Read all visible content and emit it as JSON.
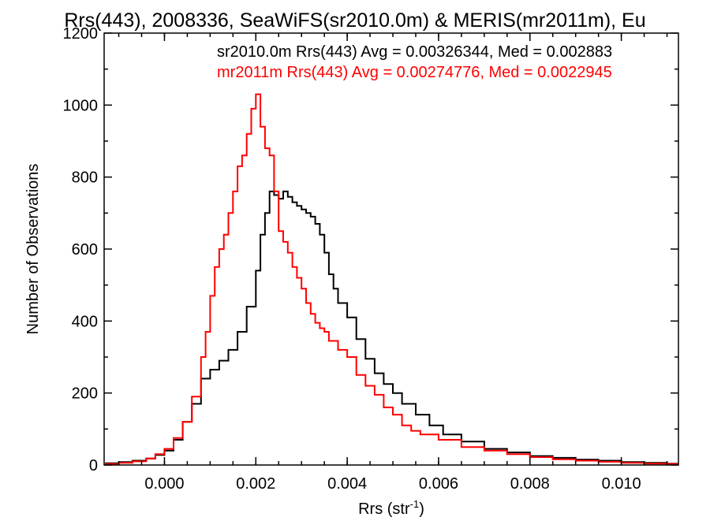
{
  "title": "Rrs(443), 2008336, SeaWiFS(sr2010.0m) & MERIS(mr2011m), Eu",
  "colors": {
    "sr2010": "#000000",
    "mr2011": "#ff0000"
  },
  "chart_data": {
    "type": "line",
    "step": true,
    "xlabel": "Rrs (str",
    "xlabel_sup": "-1",
    "xlabel_close": ")",
    "ylabel": "Number of Observations",
    "xlim": [
      -0.00132,
      0.01125
    ],
    "ylim": [
      0,
      1200
    ],
    "xticks": [
      {
        "value": 0.0,
        "label": "0.000"
      },
      {
        "value": 0.002,
        "label": "0.002"
      },
      {
        "value": 0.004,
        "label": "0.004"
      },
      {
        "value": 0.006,
        "label": "0.006"
      },
      {
        "value": 0.008,
        "label": "0.008"
      },
      {
        "value": 0.01,
        "label": "0.010"
      }
    ],
    "yticks": [
      {
        "value": 0,
        "label": "0"
      },
      {
        "value": 200,
        "label": "200"
      },
      {
        "value": 400,
        "label": "400"
      },
      {
        "value": 600,
        "label": "600"
      },
      {
        "value": 800,
        "label": "800"
      },
      {
        "value": 1000,
        "label": "1000"
      },
      {
        "value": 1200,
        "label": "1200"
      }
    ],
    "legend": [
      {
        "text": "sr2010.0m Rrs(443) Avg = 0.00326344, Med = 0.002883",
        "color": "#000000"
      },
      {
        "text": "mr2011m Rrs(443) Avg = 0.00274776, Med = 0.0022945",
        "color": "#ff0000"
      }
    ],
    "series": [
      {
        "key": "sr2010",
        "color": "#000000",
        "points": [
          [
            -0.0013,
            5
          ],
          [
            -0.001,
            8
          ],
          [
            -0.0007,
            12
          ],
          [
            -0.0004,
            18
          ],
          [
            -0.0002,
            28
          ],
          [
            0.0,
            40
          ],
          [
            0.0002,
            70
          ],
          [
            0.0004,
            120
          ],
          [
            0.0006,
            170
          ],
          [
            0.0008,
            240
          ],
          [
            0.001,
            265
          ],
          [
            0.0012,
            290
          ],
          [
            0.0014,
            320
          ],
          [
            0.0016,
            370
          ],
          [
            0.0018,
            440
          ],
          [
            0.002,
            540
          ],
          [
            0.0021,
            640
          ],
          [
            0.0022,
            700
          ],
          [
            0.0023,
            760
          ],
          [
            0.0024,
            750
          ],
          [
            0.0025,
            740
          ],
          [
            0.0026,
            760
          ],
          [
            0.0027,
            745
          ],
          [
            0.0028,
            730
          ],
          [
            0.0029,
            720
          ],
          [
            0.003,
            710
          ],
          [
            0.0031,
            700
          ],
          [
            0.0032,
            690
          ],
          [
            0.0033,
            670
          ],
          [
            0.0034,
            640
          ],
          [
            0.0035,
            590
          ],
          [
            0.0036,
            530
          ],
          [
            0.0037,
            490
          ],
          [
            0.0038,
            450
          ],
          [
            0.004,
            410
          ],
          [
            0.0042,
            350
          ],
          [
            0.0044,
            295
          ],
          [
            0.0046,
            255
          ],
          [
            0.0048,
            225
          ],
          [
            0.005,
            200
          ],
          [
            0.0052,
            170
          ],
          [
            0.0055,
            140
          ],
          [
            0.0058,
            110
          ],
          [
            0.0061,
            85
          ],
          [
            0.0065,
            65
          ],
          [
            0.007,
            45
          ],
          [
            0.0075,
            35
          ],
          [
            0.008,
            25
          ],
          [
            0.0085,
            20
          ],
          [
            0.009,
            15
          ],
          [
            0.0095,
            12
          ],
          [
            0.01,
            8
          ],
          [
            0.0105,
            6
          ],
          [
            0.011,
            4
          ]
        ]
      },
      {
        "key": "mr2011",
        "color": "#ff0000",
        "points": [
          [
            -0.0013,
            3
          ],
          [
            -0.001,
            6
          ],
          [
            -0.0007,
            10
          ],
          [
            -0.0004,
            18
          ],
          [
            -0.0002,
            30
          ],
          [
            0.0,
            45
          ],
          [
            0.0002,
            75
          ],
          [
            0.0004,
            120
          ],
          [
            0.0006,
            190
          ],
          [
            0.0008,
            300
          ],
          [
            0.0009,
            370
          ],
          [
            0.001,
            470
          ],
          [
            0.0011,
            550
          ],
          [
            0.0012,
            600
          ],
          [
            0.0013,
            640
          ],
          [
            0.0014,
            700
          ],
          [
            0.0015,
            760
          ],
          [
            0.0016,
            830
          ],
          [
            0.0017,
            860
          ],
          [
            0.0018,
            920
          ],
          [
            0.0019,
            990
          ],
          [
            0.002,
            1030
          ],
          [
            0.0021,
            940
          ],
          [
            0.0022,
            880
          ],
          [
            0.0023,
            860
          ],
          [
            0.0024,
            760
          ],
          [
            0.0025,
            650
          ],
          [
            0.0026,
            620
          ],
          [
            0.0027,
            590
          ],
          [
            0.0028,
            550
          ],
          [
            0.0029,
            520
          ],
          [
            0.003,
            490
          ],
          [
            0.0031,
            450
          ],
          [
            0.0032,
            420
          ],
          [
            0.0033,
            395
          ],
          [
            0.0034,
            380
          ],
          [
            0.0035,
            370
          ],
          [
            0.0036,
            345
          ],
          [
            0.0038,
            320
          ],
          [
            0.004,
            300
          ],
          [
            0.0042,
            250
          ],
          [
            0.0044,
            220
          ],
          [
            0.0046,
            195
          ],
          [
            0.0048,
            160
          ],
          [
            0.005,
            140
          ],
          [
            0.0052,
            110
          ],
          [
            0.0054,
            95
          ],
          [
            0.0056,
            85
          ],
          [
            0.006,
            70
          ],
          [
            0.0065,
            50
          ],
          [
            0.007,
            40
          ],
          [
            0.0075,
            30
          ],
          [
            0.008,
            22
          ],
          [
            0.0085,
            16
          ],
          [
            0.009,
            12
          ],
          [
            0.0095,
            9
          ],
          [
            0.01,
            6
          ],
          [
            0.0105,
            4
          ],
          [
            0.011,
            3
          ]
        ]
      }
    ]
  }
}
